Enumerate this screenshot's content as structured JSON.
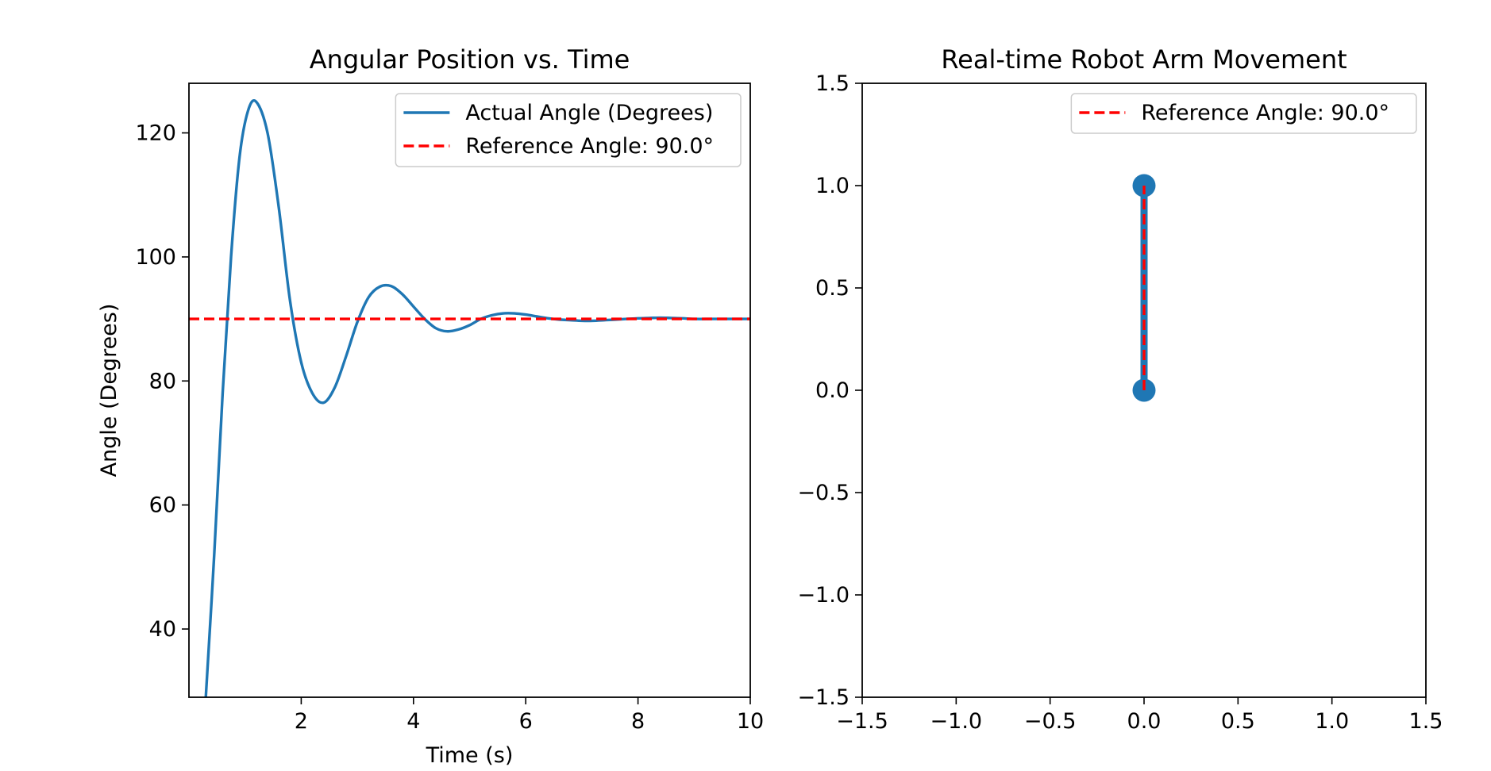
{
  "chart_data": [
    {
      "type": "line",
      "title": "Angular Position vs. Time",
      "xlabel": "Time (s)",
      "ylabel": "Angle (Degrees)",
      "xlim": [
        0,
        10
      ],
      "ylim": [
        29,
        128
      ],
      "xticks": [
        2,
        4,
        6,
        8,
        10
      ],
      "xtick_labels": [
        "2",
        "4",
        "6",
        "8",
        "10"
      ],
      "yticks": [
        40,
        60,
        80,
        100,
        120
      ],
      "ytick_labels": [
        "40",
        "60",
        "80",
        "100",
        "120"
      ],
      "grid": false,
      "legend_position": "top-right",
      "series": [
        {
          "name": "Actual Angle (Degrees)",
          "color": "#1f77b4",
          "style": "solid",
          "x": [
            0.3,
            0.45,
            0.6,
            0.75,
            0.9,
            1.05,
            1.2,
            1.4,
            1.6,
            1.8,
            2.0,
            2.2,
            2.4,
            2.6,
            2.8,
            3.0,
            3.2,
            3.4,
            3.6,
            3.8,
            4.0,
            4.2,
            4.4,
            4.6,
            4.8,
            5.0,
            5.2,
            5.4,
            5.6,
            5.8,
            6.0,
            6.2,
            6.4,
            6.6,
            6.8,
            7.0,
            7.2,
            7.4,
            7.6,
            7.8,
            8.0,
            8.2,
            8.4,
            8.6,
            8.8,
            9.0,
            9.3,
            9.6,
            10.0
          ],
          "y": [
            29,
            52,
            78,
            100,
            116,
            123.5,
            125,
            120,
            108,
            93,
            83,
            78,
            76.5,
            79,
            84,
            89.5,
            93.5,
            95.2,
            95.3,
            94,
            92,
            90,
            88.5,
            88,
            88.3,
            89,
            90,
            90.6,
            90.9,
            90.9,
            90.7,
            90.4,
            90.1,
            89.9,
            89.8,
            89.7,
            89.7,
            89.8,
            89.9,
            90,
            90.1,
            90.15,
            90.2,
            90.15,
            90.1,
            90,
            90,
            90,
            90
          ]
        },
        {
          "name": "Reference Angle: 90.0°",
          "color": "#ff0000",
          "style": "dashed",
          "x": [
            0,
            10
          ],
          "y": [
            90,
            90
          ]
        }
      ]
    },
    {
      "type": "line",
      "title": "Real-time Robot Arm Movement",
      "xlabel": "",
      "ylabel": "",
      "xlim": [
        -1.5,
        1.5
      ],
      "ylim": [
        -1.5,
        1.5
      ],
      "xticks": [
        -1.5,
        -1.0,
        -0.5,
        0.0,
        0.5,
        1.0,
        1.5
      ],
      "xtick_labels": [
        "−1.5",
        "−1.0",
        "−0.5",
        "0.0",
        "0.5",
        "1.0",
        "1.5"
      ],
      "yticks": [
        -1.5,
        -1.0,
        -0.5,
        0.0,
        0.5,
        1.0,
        1.5
      ],
      "ytick_labels": [
        "−1.5",
        "−1.0",
        "−0.5",
        "0.0",
        "0.5",
        "1.0",
        "1.5"
      ],
      "grid": false,
      "legend_position": "top-right",
      "series": [
        {
          "name": "",
          "color": "#1f77b4",
          "style": "solid-with-markers",
          "x": [
            0,
            0
          ],
          "y": [
            0,
            1
          ]
        },
        {
          "name": "Reference Angle: 90.0°",
          "color": "#ff0000",
          "style": "dashed",
          "x": [
            0,
            0
          ],
          "y": [
            0,
            1
          ]
        }
      ]
    }
  ]
}
